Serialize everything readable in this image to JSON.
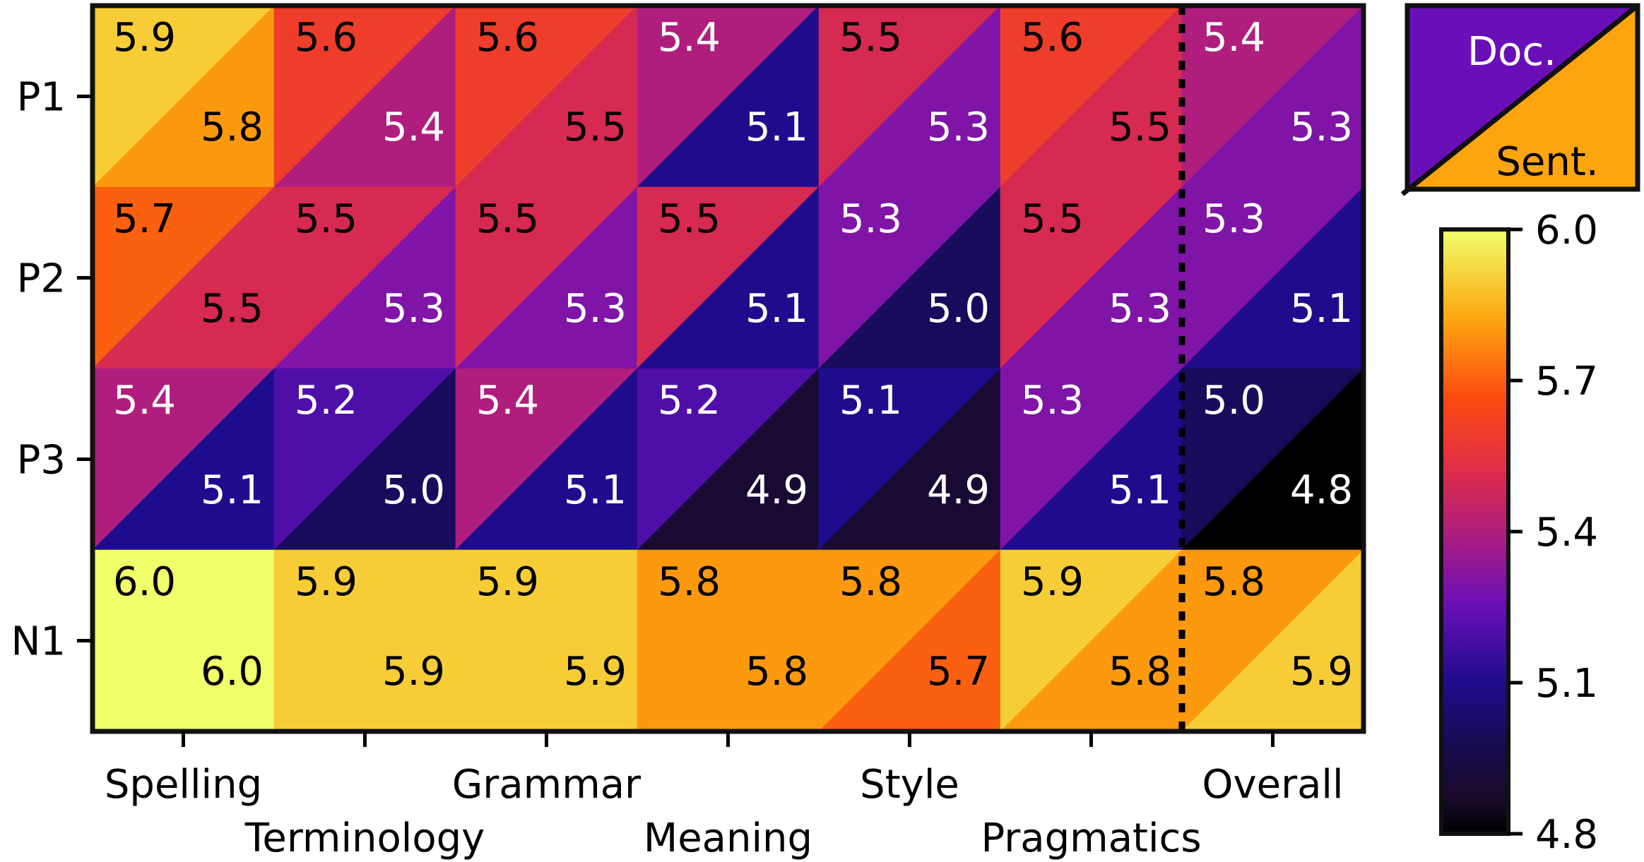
{
  "chart_data": {
    "type": "heatmap",
    "title": "",
    "xlabel": "",
    "ylabel": "",
    "rows": [
      "P1",
      "P2",
      "P3",
      "N1"
    ],
    "columns": [
      "Spelling",
      "Terminology",
      "Grammar",
      "Meaning",
      "Style",
      "Pragmatics",
      "Overall"
    ],
    "series": [
      {
        "name": "Doc.",
        "values": [
          [
            5.9,
            5.6,
            5.6,
            5.4,
            5.5,
            5.6,
            5.4
          ],
          [
            5.7,
            5.5,
            5.5,
            5.5,
            5.3,
            5.5,
            5.3
          ],
          [
            5.4,
            5.2,
            5.4,
            5.2,
            5.1,
            5.3,
            5.0
          ],
          [
            6.0,
            5.9,
            5.9,
            5.8,
            5.8,
            5.9,
            5.8
          ]
        ]
      },
      {
        "name": "Sent.",
        "values": [
          [
            5.8,
            5.4,
            5.5,
            5.1,
            5.3,
            5.5,
            5.3
          ],
          [
            5.5,
            5.3,
            5.3,
            5.1,
            5.0,
            5.3,
            5.1
          ],
          [
            5.1,
            5.0,
            5.1,
            4.9,
            4.9,
            5.1,
            4.8
          ],
          [
            6.0,
            5.9,
            5.9,
            5.8,
            5.7,
            5.8,
            5.9
          ]
        ]
      }
    ],
    "legend": {
      "upper_triangle": "Doc.",
      "lower_triangle": "Sent.",
      "placement": "top-right"
    },
    "colorbar": {
      "colormap": "plasma-like (black-purple-red-orange-yellow)",
      "range": [
        4.8,
        6.0
      ],
      "ticks": [
        "6.0",
        "5.7",
        "5.4",
        "5.1",
        "4.8"
      ]
    },
    "separator_before_column": "Overall"
  }
}
